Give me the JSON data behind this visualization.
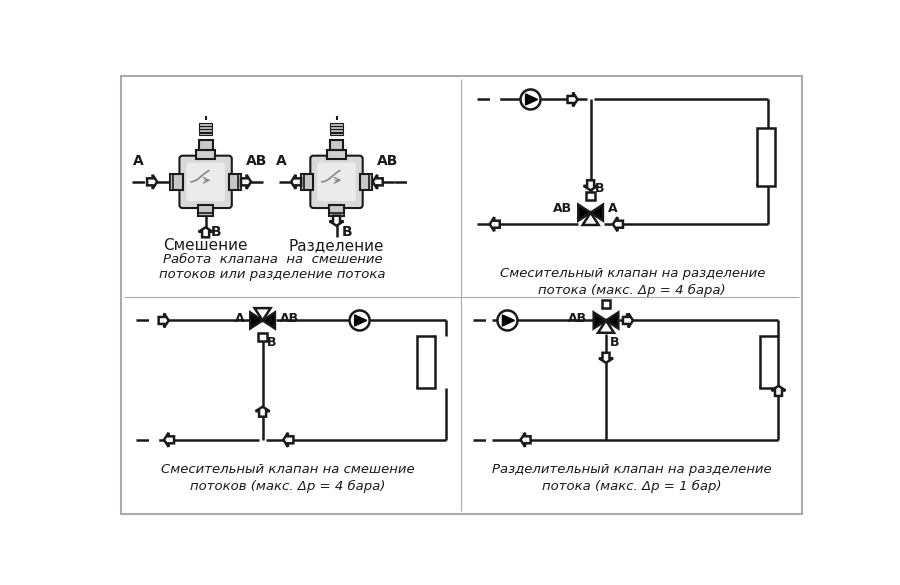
{
  "line_color": "#1a1a1a",
  "title_smesh": "Смешение",
  "title_razdel": "Разделение",
  "caption1": "Работа  клапана  на  смешение\nпотоков или разделение потока",
  "caption2": "Смесительный клапан на разделение\nпотока (макс. Δp = 4 бара)",
  "caption3": "Смесительный клапан на смешение\nпотоков (макс. Δp = 4 бара)",
  "caption4": "Разделительный клапан на разделение\nпотока (макс. Δp = 1 бар)"
}
